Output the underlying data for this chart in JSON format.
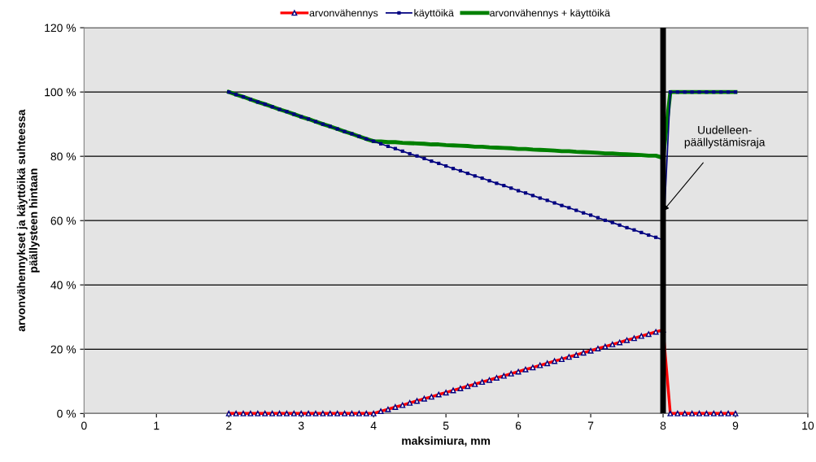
{
  "chart_data": {
    "type": "line",
    "xlabel": "maksimiura, mm",
    "ylabel": "arvonvähennykset ja käyttöikä suhteessa päällysteen hintaan",
    "x": [
      2.0,
      2.1,
      2.2,
      2.3,
      2.4,
      2.5,
      2.6,
      2.7,
      2.8,
      2.9,
      3.0,
      3.1,
      3.2,
      3.3,
      3.4,
      3.5,
      3.6,
      3.7,
      3.8,
      3.9,
      4.0,
      4.1,
      4.2,
      4.3,
      4.4,
      4.5,
      4.6,
      4.7,
      4.8,
      4.9,
      5.0,
      5.1,
      5.2,
      5.3,
      5.4,
      5.5,
      5.6,
      5.7,
      5.8,
      5.9,
      6.0,
      6.1,
      6.2,
      6.3,
      6.4,
      6.5,
      6.6,
      6.7,
      6.8,
      6.9,
      7.0,
      7.1,
      7.2,
      7.3,
      7.4,
      7.5,
      7.6,
      7.7,
      7.8,
      7.9,
      8.0,
      8.1,
      8.2,
      8.3,
      8.4,
      8.5,
      8.6,
      8.7,
      8.8,
      8.9,
      9.0
    ],
    "series": [
      {
        "name": "arvonvähennys",
        "color": "#ff0000",
        "marker": "triangle",
        "values": [
          0,
          0,
          0,
          0,
          0,
          0,
          0,
          0,
          0,
          0,
          0,
          0,
          0,
          0,
          0,
          0,
          0,
          0,
          0,
          0,
          0,
          0.7,
          1.3,
          2.0,
          2.6,
          3.3,
          3.9,
          4.6,
          5.2,
          5.9,
          6.5,
          7.2,
          7.8,
          8.5,
          9.1,
          9.8,
          10.4,
          11.1,
          11.7,
          12.4,
          13.0,
          13.7,
          14.3,
          15.0,
          15.6,
          16.3,
          16.9,
          17.6,
          18.2,
          18.9,
          19.5,
          20.2,
          20.8,
          21.5,
          22.1,
          22.8,
          23.4,
          24.1,
          24.7,
          25.4,
          26.0,
          0,
          0,
          0,
          0,
          0,
          0,
          0,
          0,
          0,
          0
        ]
      },
      {
        "name": "käyttöikä",
        "color": "#000080",
        "marker": "square",
        "values": [
          100,
          99.2,
          98.5,
          97.7,
          96.9,
          96.2,
          95.4,
          94.6,
          93.9,
          93.1,
          92.3,
          91.6,
          90.8,
          90.0,
          89.3,
          88.5,
          87.7,
          87.0,
          86.2,
          85.4,
          84.7,
          83.9,
          83.1,
          82.4,
          81.6,
          80.8,
          80.1,
          79.3,
          78.5,
          77.8,
          77.0,
          76.2,
          75.5,
          74.7,
          73.9,
          73.2,
          72.4,
          71.6,
          70.9,
          70.1,
          69.3,
          68.6,
          67.8,
          67.0,
          66.3,
          65.5,
          64.7,
          64.0,
          63.2,
          62.4,
          61.7,
          60.9,
          60.1,
          59.4,
          58.6,
          57.8,
          57.1,
          56.3,
          55.5,
          54.8,
          54.0,
          100,
          100,
          100,
          100,
          100,
          100,
          100,
          100,
          100,
          100
        ]
      },
      {
        "name": "arvonvähennys + käyttöikä",
        "color": "#008000",
        "values": [
          100,
          99.2,
          98.5,
          97.7,
          96.9,
          96.2,
          95.4,
          94.6,
          93.9,
          93.1,
          92.3,
          91.6,
          90.8,
          90.0,
          89.3,
          88.5,
          87.7,
          87.0,
          86.2,
          85.4,
          84.7,
          84.6,
          84.4,
          84.4,
          84.2,
          84.1,
          84.0,
          83.9,
          83.7,
          83.7,
          83.5,
          83.4,
          83.3,
          83.2,
          83.0,
          83.0,
          82.8,
          82.7,
          82.6,
          82.5,
          82.3,
          82.3,
          82.1,
          82.0,
          81.9,
          81.8,
          81.6,
          81.6,
          81.4,
          81.3,
          81.2,
          81.1,
          80.9,
          80.9,
          80.7,
          80.6,
          80.5,
          80.4,
          80.2,
          80.2,
          79.5,
          100,
          100,
          100,
          100,
          100,
          100,
          100,
          100,
          100,
          100
        ]
      }
    ],
    "xlim": [
      0,
      10
    ],
    "xticks": [
      0,
      1,
      2,
      3,
      4,
      5,
      6,
      7,
      8,
      9,
      10
    ],
    "ylim": [
      0,
      120
    ],
    "yticks": [
      {
        "value": 0,
        "label": "0 %"
      },
      {
        "value": 20,
        "label": "20 %"
      },
      {
        "value": 40,
        "label": "40 %"
      },
      {
        "value": 60,
        "label": "60 %"
      },
      {
        "value": 80,
        "label": "80 %"
      },
      {
        "value": 100,
        "label": "100 %"
      },
      {
        "value": 120,
        "label": "120 %"
      }
    ],
    "ref_lines": [
      {
        "axis": "x",
        "value": 8,
        "color": "#000000"
      }
    ],
    "annotations": [
      {
        "text": "Uudelleen-\npäällystämisraja",
        "x": 8,
        "y": 63
      }
    ],
    "grid": "y",
    "legend": "top"
  }
}
